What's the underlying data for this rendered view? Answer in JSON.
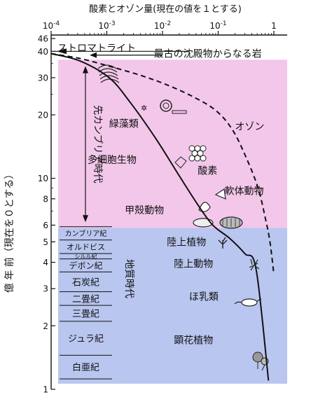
{
  "chart_data": {
    "type": "line",
    "title": "酸素とオゾン量(現在の値を１とする)",
    "ylabel": "億 年 前（現在を０とする）",
    "x_scale": "log",
    "y_scale": "log",
    "xlim": [
      0.0001,
      1
    ],
    "ylim": [
      1,
      46
    ],
    "x_ticks": [
      {
        "value": 0.0001,
        "label": "10⁻⁴"
      },
      {
        "value": 0.001,
        "label": "10⁻³"
      },
      {
        "value": 0.01,
        "label": "10⁻²"
      },
      {
        "value": 0.1,
        "label": "10⁻¹"
      },
      {
        "value": 1,
        "label": "1"
      }
    ],
    "y_ticks": [
      {
        "value": 46,
        "label": "46"
      },
      {
        "value": 40,
        "label": "40"
      },
      {
        "value": 30,
        "label": "30"
      },
      {
        "value": 20,
        "label": "20"
      },
      {
        "value": 10,
        "label": "10"
      },
      {
        "value": 8,
        "label": "8"
      },
      {
        "value": 6,
        "label": "6"
      },
      {
        "value": 5,
        "label": "5"
      },
      {
        "value": 4,
        "label": "4"
      },
      {
        "value": 3,
        "label": "3"
      },
      {
        "value": 2,
        "label": "2"
      },
      {
        "value": 1,
        "label": "1"
      }
    ],
    "series": [
      {
        "name": "酸素",
        "style": "solid",
        "x": [
          0.0001,
          0.00033,
          0.0011,
          0.0026,
          0.0075,
          0.019,
          0.043,
          0.08,
          0.16,
          0.3,
          0.48,
          0.8
        ],
        "y": [
          39,
          36,
          30,
          23,
          15.5,
          10.5,
          7.5,
          6,
          5.2,
          4.4,
          3.7,
          1.1
        ]
      },
      {
        "name": "オゾン",
        "style": "dashed",
        "x": [
          0.0001,
          0.00033,
          0.0011,
          0.0037,
          0.011,
          0.034,
          0.09,
          0.18,
          0.32,
          0.52,
          0.7,
          0.85,
          1
        ],
        "y": [
          39,
          37,
          34,
          31,
          28,
          24.5,
          21,
          17,
          12.5,
          9,
          6.5,
          5,
          3.5
        ]
      }
    ],
    "regions": [
      {
        "label": "先カンブリア時代",
        "y_range": [
          6,
          40
        ],
        "color": "#f3c7ea"
      },
      {
        "label": "地質時代",
        "y_range": [
          1,
          6
        ],
        "color": "#b9c6ef"
      }
    ],
    "periods": [
      "カンブリア紀",
      "オルドビス",
      "シルル紀",
      "デボン紀",
      "石炭紀",
      "二畳紀",
      "三畳紀",
      "ジュラ紀",
      "白亜紀"
    ],
    "annotations": [
      {
        "text": "ストロマトライト",
        "x": 0.00013,
        "y": 40
      },
      {
        "text": "最古の沈殿物からなる岩",
        "x": 0.007,
        "y": 37.5
      },
      {
        "text": "緑藻類",
        "x": 0.0011,
        "y": 17.5
      },
      {
        "text": "多細胞生物",
        "x": 0.00045,
        "y": 11.8
      },
      {
        "text": "酸素",
        "x": 0.043,
        "y": 10.5
      },
      {
        "text": "オゾン",
        "x": 0.2,
        "y": 17
      },
      {
        "text": "軟体動物",
        "x": 0.13,
        "y": 8.4
      },
      {
        "text": "甲殻動物",
        "x": 0.0021,
        "y": 6.8
      },
      {
        "text": "陸上植物",
        "x": 0.012,
        "y": 4.8
      },
      {
        "text": "陸上動物",
        "x": 0.016,
        "y": 3.8
      },
      {
        "text": "ほ乳類",
        "x": 0.03,
        "y": 2.65
      },
      {
        "text": "顕花植物",
        "x": 0.016,
        "y": 1.65
      }
    ]
  }
}
